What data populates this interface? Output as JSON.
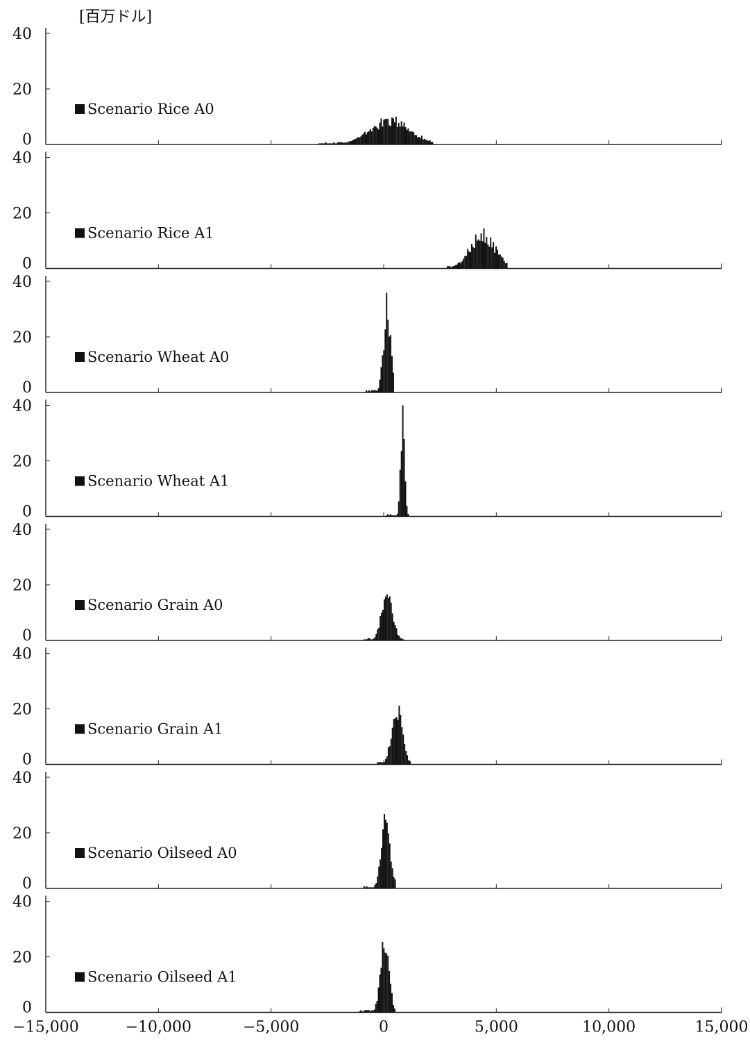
{
  "unit_label": "[百万ドル]",
  "chart_data": {
    "type": "bar",
    "subtype": "stacked-histograms",
    "unit": "[百万ドル]",
    "xlim": [
      -15000,
      15000
    ],
    "x_ticks": [
      -15000,
      -10000,
      -5000,
      0,
      5000,
      10000,
      15000
    ],
    "x_tick_labels": [
      "−15,000",
      "−10,000",
      "−5,000",
      "0",
      "5,000",
      "10,000",
      "15,000"
    ],
    "ylim": [
      0,
      40
    ],
    "y_ticks": [
      0,
      20,
      40
    ],
    "y_tick_labels": [
      "0",
      "20",
      "40"
    ],
    "grid": false,
    "panels": [
      {
        "legend": "Scenario Rice A0",
        "peak_x": 300,
        "spread": 900,
        "peak_y": 10.5,
        "min_x": -2900,
        "max_x": 2200
      },
      {
        "legend": "Scenario Rice A1",
        "peak_x": 4400,
        "spread": 550,
        "peak_y": 15,
        "min_x": 2800,
        "max_x": 5500
      },
      {
        "legend": "Scenario Wheat A0",
        "peak_x": 150,
        "spread": 160,
        "peak_y": 37,
        "min_x": -800,
        "max_x": 450
      },
      {
        "legend": "Scenario Wheat A1",
        "peak_x": 850,
        "spread": 90,
        "peak_y": 41,
        "min_x": 100,
        "max_x": 1100
      },
      {
        "legend": "Scenario Grain A0",
        "peak_x": 150,
        "spread": 240,
        "peak_y": 21,
        "min_x": -900,
        "max_x": 900
      },
      {
        "legend": "Scenario Grain A1",
        "peak_x": 600,
        "spread": 240,
        "peak_y": 23,
        "min_x": -300,
        "max_x": 1200
      },
      {
        "legend": "Scenario Oilseed A0",
        "peak_x": 100,
        "spread": 200,
        "peak_y": 29,
        "min_x": -900,
        "max_x": 500
      },
      {
        "legend": "Scenario Oilseed A1",
        "peak_x": 50,
        "spread": 190,
        "peak_y": 30,
        "min_x": -1100,
        "max_x": 500
      }
    ]
  }
}
